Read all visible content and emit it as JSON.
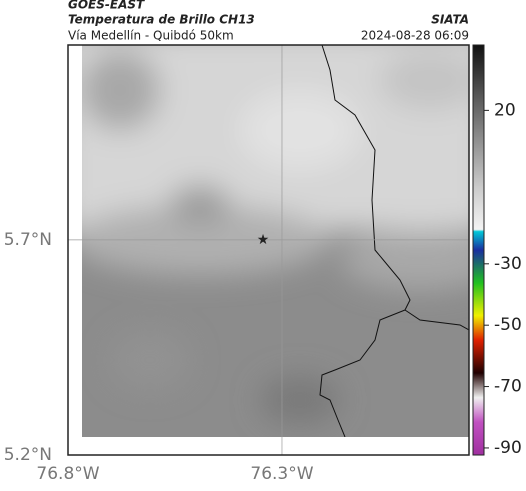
{
  "header": {
    "title": "GOES-EAST",
    "subtitle": "Temperatura de Brillo CH13",
    "location": "Vía Medellín - Quibdó 50km",
    "source": "SIATA",
    "datetime": "2024-08-28 06:09"
  },
  "map": {
    "xlim": [
      -76.8,
      -75.863
    ],
    "ylim": [
      5.2,
      6.153
    ],
    "xticks": [
      {
        "value": -76.8,
        "label": "76.8°W"
      },
      {
        "value": -76.3,
        "label": "76.3°W"
      }
    ],
    "yticks": [
      {
        "value": 5.2,
        "label": "5.2°N"
      },
      {
        "value": 5.7,
        "label": "5.7°N"
      }
    ]
  },
  "colorbar": {
    "lim": [
      -92.3,
      41.3
    ],
    "ticks": [
      20,
      -30,
      -50,
      -70,
      -90
    ]
  }
}
